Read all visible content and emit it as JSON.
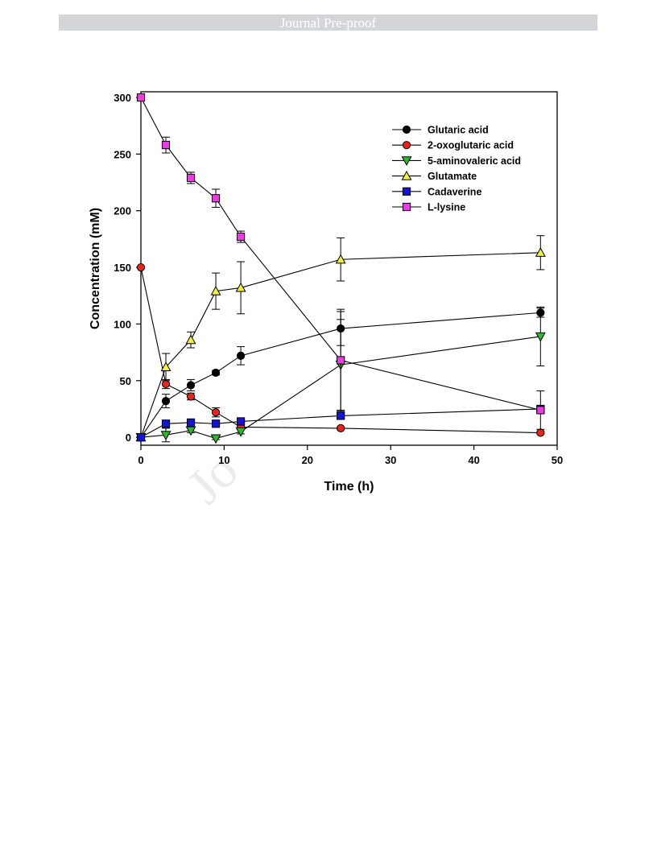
{
  "header": {
    "banner_text": "Journal Pre-proof"
  },
  "watermark": {
    "text": "Jo"
  },
  "chart_data": {
    "type": "line",
    "title": "",
    "xlabel": "Time (h)",
    "ylabel": "Concentration (mM)",
    "xlim": [
      0,
      50
    ],
    "ylim": [
      -7,
      305
    ],
    "x_ticks": [
      0,
      10,
      20,
      30,
      40,
      50
    ],
    "y_ticks": [
      0,
      50,
      100,
      150,
      200,
      250,
      300
    ],
    "grid": false,
    "legend_position": "top-right",
    "series": [
      {
        "name": "Glutaric acid",
        "marker": "circle",
        "color": "#000000",
        "x": [
          0,
          3,
          6,
          9,
          12,
          24,
          48
        ],
        "y": [
          0,
          32,
          46,
          57,
          72,
          96,
          110
        ],
        "err": [
          0,
          6,
          5,
          2,
          8,
          15,
          4
        ]
      },
      {
        "name": "2-oxoglutaric acid",
        "marker": "circle",
        "color": "#e8241c",
        "x": [
          0,
          3,
          6,
          9,
          12,
          24,
          48
        ],
        "y": [
          150,
          47,
          36,
          22,
          9,
          8,
          4
        ],
        "err": [
          0,
          4,
          3,
          4,
          2,
          1,
          1
        ]
      },
      {
        "name": "5-aminovaleric acid",
        "marker": "triangle-down",
        "color": "#2db82d",
        "x": [
          0,
          3,
          6,
          9,
          12,
          24,
          48
        ],
        "y": [
          0,
          2,
          6,
          -1,
          5,
          64,
          89
        ],
        "err": [
          0,
          6,
          2,
          1,
          2,
          40,
          26
        ]
      },
      {
        "name": "Glutamate",
        "marker": "triangle-up",
        "color": "#f2ef45",
        "x": [
          0,
          3,
          6,
          9,
          12,
          24,
          48
        ],
        "y": [
          0,
          62,
          86,
          129,
          132,
          157,
          163
        ],
        "err": [
          0,
          12,
          7,
          16,
          23,
          19,
          15
        ]
      },
      {
        "name": "Cadaverine",
        "marker": "square",
        "color": "#1414d2",
        "x": [
          0,
          3,
          6,
          9,
          12,
          24,
          48
        ],
        "y": [
          0,
          12,
          13,
          12,
          14,
          19,
          25
        ],
        "err": [
          0,
          1,
          1,
          1,
          1,
          2,
          2
        ]
      },
      {
        "name": "L-lysine",
        "marker": "square",
        "color": "#e83ee0",
        "x": [
          0,
          3,
          6,
          9,
          12,
          24,
          48
        ],
        "y": [
          300,
          258,
          229,
          211,
          177,
          68,
          24
        ],
        "err": [
          0,
          7,
          5,
          8,
          5,
          45,
          17
        ]
      }
    ]
  }
}
